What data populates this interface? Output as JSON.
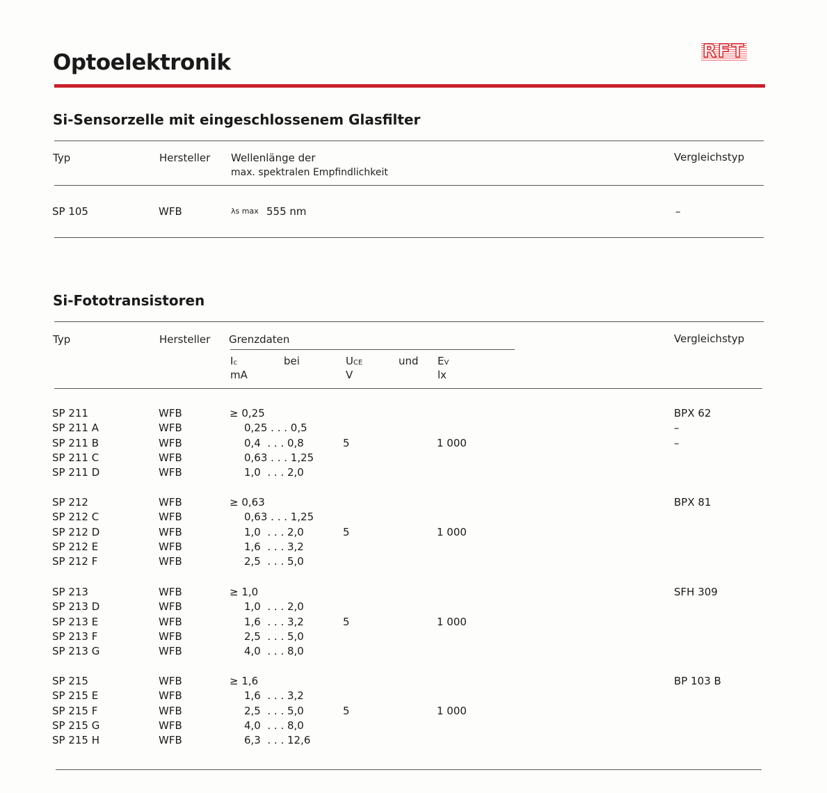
{
  "title": "Optoelektronik",
  "logo_text": "RFT",
  "accent_color": "#c8202a",
  "section1": {
    "heading": "Si-Sensorzelle mit eingeschlossenem Glasfilter",
    "headers": {
      "typ": "Typ",
      "hersteller": "Hersteller",
      "wellen1": "Wellenlänge der",
      "wellen2": "max. spektralen Empfindlichkeit",
      "vergleich": "Vergleichstyp"
    },
    "row": {
      "typ": "SP 105",
      "hersteller": "WFB",
      "lambda": "λs max",
      "value": "555 nm",
      "vergleich": "–"
    }
  },
  "section2": {
    "heading": "Si-Fototransistoren",
    "headers": {
      "typ": "Typ",
      "hersteller": "Hersteller",
      "grenzdaten": "Grenzdaten",
      "ic": "I",
      "ic_sub": "c",
      "bei": "bei",
      "uce": "U",
      "uce_sub": "CE",
      "und": "und",
      "ev": "E",
      "ev_sub": "V",
      "ic_unit": "mA",
      "uce_unit": "V",
      "ev_unit": "lx",
      "vergleich": "Vergleichstyp"
    },
    "groups": [
      {
        "uce": "5",
        "ev": "1 000",
        "rows": [
          {
            "typ": "SP 211",
            "hersteller": "WFB",
            "ic": "≥ 0,25",
            "vergleich": "BPX 62"
          },
          {
            "typ": "SP 211 A",
            "hersteller": "WFB",
            "ic": "0,25 . . . 0,5",
            "vergleich": "–"
          },
          {
            "typ": "SP 211 B",
            "hersteller": "WFB",
            "ic": "0,4  . . . 0,8",
            "vergleich": "–"
          },
          {
            "typ": "SP 211 C",
            "hersteller": "WFB",
            "ic": "0,63 . . . 1,25",
            "vergleich": ""
          },
          {
            "typ": "SP 211 D",
            "hersteller": "WFB",
            "ic": "1,0  . . . 2,0",
            "vergleich": ""
          }
        ]
      },
      {
        "uce": "5",
        "ev": "1 000",
        "rows": [
          {
            "typ": "SP 212",
            "hersteller": "WFB",
            "ic": "≥ 0,63",
            "vergleich": "BPX 81"
          },
          {
            "typ": "SP 212 C",
            "hersteller": "WFB",
            "ic": "0,63 . . . 1,25",
            "vergleich": ""
          },
          {
            "typ": "SP 212 D",
            "hersteller": "WFB",
            "ic": "1,0  . . . 2,0",
            "vergleich": ""
          },
          {
            "typ": "SP 212 E",
            "hersteller": "WFB",
            "ic": "1,6  . . . 3,2",
            "vergleich": ""
          },
          {
            "typ": "SP 212 F",
            "hersteller": "WFB",
            "ic": "2,5  . . . 5,0",
            "vergleich": ""
          }
        ]
      },
      {
        "uce": "5",
        "ev": "1 000",
        "rows": [
          {
            "typ": "SP 213",
            "hersteller": "WFB",
            "ic": "≥ 1,0",
            "vergleich": "SFH 309"
          },
          {
            "typ": "SP 213 D",
            "hersteller": "WFB",
            "ic": "1,0  . . . 2,0",
            "vergleich": ""
          },
          {
            "typ": "SP 213 E",
            "hersteller": "WFB",
            "ic": "1,6  . . . 3,2",
            "vergleich": ""
          },
          {
            "typ": "SP 213 F",
            "hersteller": "WFB",
            "ic": "2,5  . . . 5,0",
            "vergleich": ""
          },
          {
            "typ": "SP 213 G",
            "hersteller": "WFB",
            "ic": "4,0  . . . 8,0",
            "vergleich": ""
          }
        ]
      },
      {
        "uce": "5",
        "ev": "1 000",
        "rows": [
          {
            "typ": "SP 215",
            "hersteller": "WFB",
            "ic": "≥ 1,6",
            "vergleich": "BP 103 B"
          },
          {
            "typ": "SP 215 E",
            "hersteller": "WFB",
            "ic": "1,6  . . . 3,2",
            "vergleich": ""
          },
          {
            "typ": "SP 215 F",
            "hersteller": "WFB",
            "ic": "2,5  . . . 5,0",
            "vergleich": ""
          },
          {
            "typ": "SP 215 G",
            "hersteller": "WFB",
            "ic": "4,0  . . . 8,0",
            "vergleich": ""
          },
          {
            "typ": "SP 215 H",
            "hersteller": "WFB",
            "ic": "6,3  . . . 12,6",
            "vergleich": ""
          }
        ]
      }
    ]
  }
}
